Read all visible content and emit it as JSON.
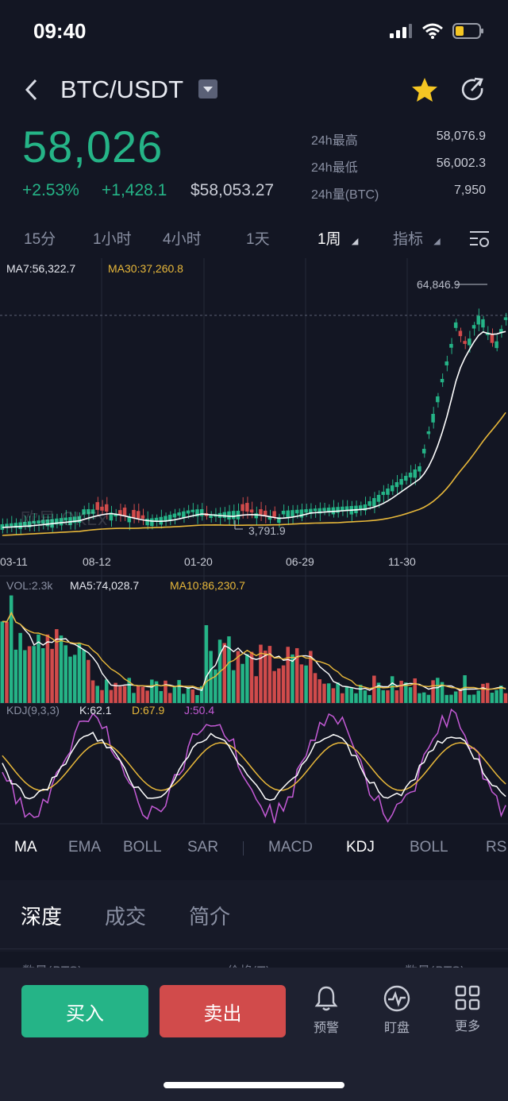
{
  "status_bar": {
    "time": "09:40"
  },
  "header": {
    "pair": "BTC/USDT"
  },
  "ticker": {
    "last_price": "58,026",
    "change_pct": "+2.53%",
    "change_abs": "+1,428.1",
    "usd_price": "$58,053.27",
    "stats": [
      {
        "label": "24h最高",
        "value": "58,076.9"
      },
      {
        "label": "24h最低",
        "value": "56,002.3"
      },
      {
        "label": "24h量(BTC)",
        "value": "7,950"
      }
    ]
  },
  "interval_tabs": [
    "15分",
    "1小时",
    "4小时",
    "1天",
    "1周",
    "指标"
  ],
  "active_interval": "1周",
  "main_chart": {
    "ma7_label": "MA7:56,322.7",
    "ma30_label": "MA30:37,260.8",
    "high_label": "64,846.9",
    "low_label": "3,791.9",
    "watermark": "欧易 OKEx",
    "x_ticks": [
      "03-11",
      "08-12",
      "01-20",
      "06-29",
      "11-30"
    ]
  },
  "volume_chart": {
    "vol_label": "VOL:2.3k",
    "ma5_label": "MA5:74,028.7",
    "ma10_label": "MA10:86,230.7"
  },
  "kdj_chart": {
    "title": "KDJ(9,3,3)",
    "k_label": "K:62.1",
    "d_label": "D:67.9",
    "j_label": "J:50.4"
  },
  "indicator_tabs": {
    "main": [
      "MA",
      "EMA",
      "BOLL",
      "SAR"
    ],
    "sub": [
      "MACD",
      "KDJ",
      "BOLL",
      "RS"
    ]
  },
  "section_tabs": [
    "深度",
    "成交",
    "简介"
  ],
  "depth_header": {
    "left": "数量(BTC)",
    "mid": "价格(T)",
    "right": "数量(BTC)"
  },
  "actions": {
    "buy": "买入",
    "sell": "卖出"
  },
  "tools": [
    {
      "icon": "bell-icon",
      "label": "预警"
    },
    {
      "icon": "pulse-icon",
      "label": "盯盘"
    },
    {
      "icon": "grid-icon",
      "label": "更多"
    }
  ],
  "colors": {
    "up": "#25b487",
    "down": "#d14b4b",
    "ma7": "#ffffff",
    "ma30": "#e8b83a",
    "j": "#c45ad6",
    "star": "#f5c623"
  }
}
